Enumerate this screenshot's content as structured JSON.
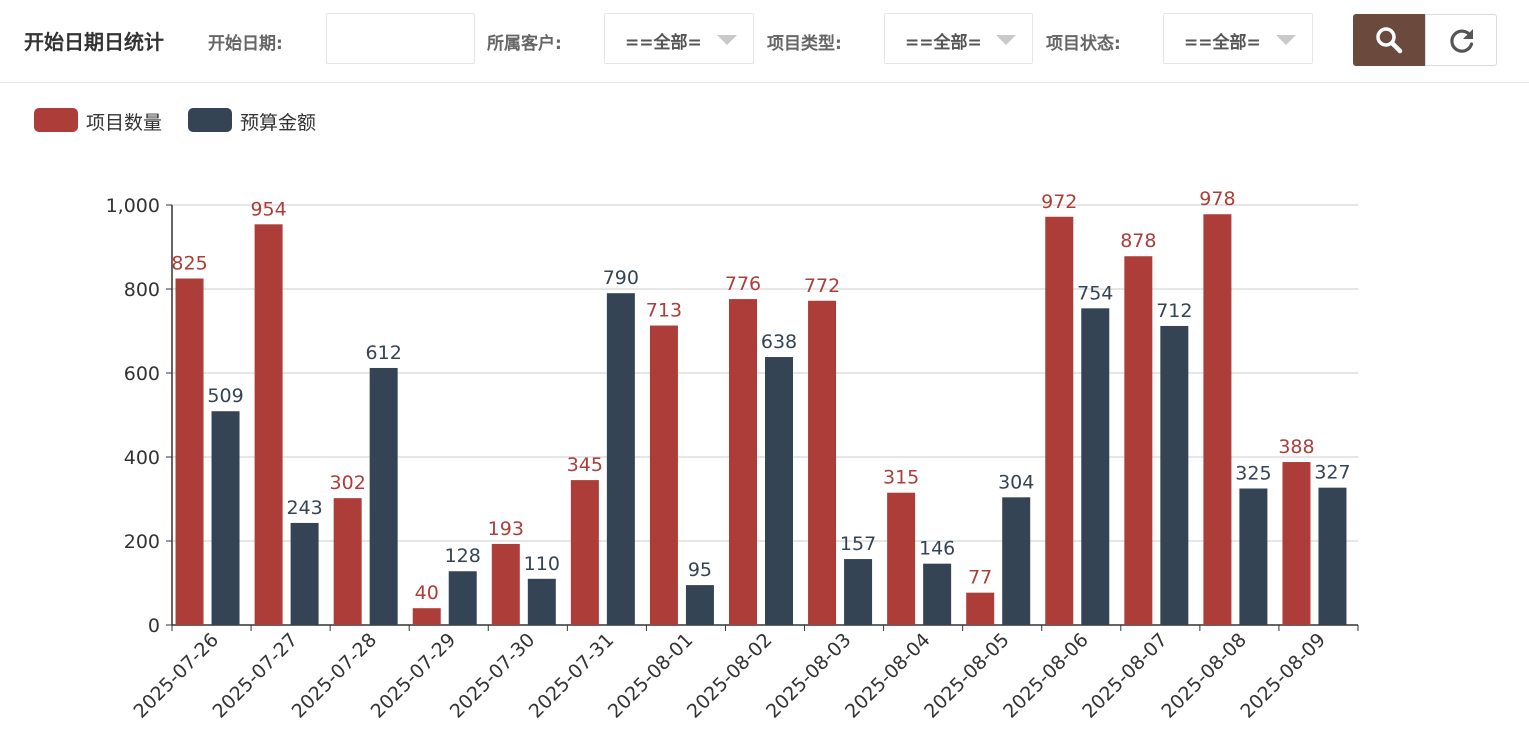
{
  "header": {
    "title": "开始日期日统计",
    "filters": {
      "start_date_label": "开始日期:",
      "start_date_value": "",
      "customer_label": "所属客户:",
      "customer_value": "==全部=",
      "project_type_label": "项目类型:",
      "project_type_value": "==全部=",
      "project_status_label": "项目状态:",
      "project_status_value": "==全部="
    },
    "icons": {
      "search": "search-icon",
      "refresh": "refresh-icon"
    }
  },
  "chart_data": {
    "type": "bar",
    "categories": [
      "2025-07-26",
      "2025-07-27",
      "2025-07-28",
      "2025-07-29",
      "2025-07-30",
      "2025-07-31",
      "2025-08-01",
      "2025-08-02",
      "2025-08-03",
      "2025-08-04",
      "2025-08-05",
      "2025-08-06",
      "2025-08-07",
      "2025-08-08",
      "2025-08-09"
    ],
    "series": [
      {
        "name": "项目数量",
        "color": "#ad3d38",
        "values": [
          825,
          954,
          302,
          40,
          193,
          345,
          713,
          776,
          772,
          315,
          77,
          972,
          878,
          978,
          388
        ]
      },
      {
        "name": "预算金额",
        "color": "#354454",
        "values": [
          509,
          243,
          612,
          128,
          110,
          790,
          95,
          638,
          157,
          146,
          304,
          754,
          712,
          325,
          327
        ]
      }
    ],
    "yticks": [
      "0",
      "200",
      "400",
      "600",
      "800",
      "1,000"
    ],
    "ylim": [
      0,
      1000
    ],
    "grid": true,
    "legend_position": "top-left",
    "xlabel": "",
    "ylabel": ""
  }
}
